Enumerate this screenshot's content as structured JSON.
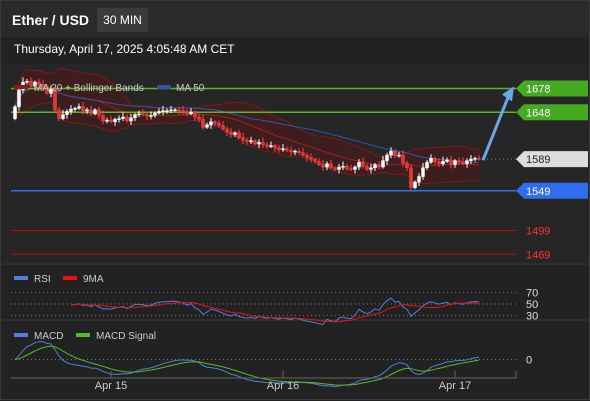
{
  "header": {
    "title": "Ether / USD",
    "timeframe": "30 MIN"
  },
  "datetime": "Thursday, April 17, 2025 4:05:48 AM CET",
  "colors": {
    "up": "#ffffff",
    "down": "#ff4444",
    "ma20": "#8b1a1a",
    "ma50": "#3355aa",
    "rsi": "#4f7fe0",
    "rsi_ma": "#ee1111",
    "macd": "#4f7fe0",
    "macd_signal": "#55bb22",
    "resistance": "#5cb82a",
    "support": "#2f6fef",
    "target_low": "#aa1111",
    "arrow": "#6aa6ee"
  },
  "chart_data": [
    {
      "type": "candlestick",
      "series_legend": [
        {
          "name": "MA 20 + Bollinger Bands",
          "color": "#8b1a1a"
        },
        {
          "name": "MA 50",
          "color": "#3355aa"
        }
      ],
      "ylim": [
        1458,
        1700
      ],
      "x_ticks": [
        "Apr 15",
        "Apr 16",
        "Apr 17"
      ],
      "x_tick_index": [
        24,
        67,
        110
      ],
      "start_price": 1640,
      "closes": [
        1655,
        1676,
        1686,
        1687,
        1681,
        1686,
        1683,
        1680,
        1672,
        1677,
        1651,
        1640,
        1645,
        1649,
        1652,
        1653,
        1655,
        1650,
        1651,
        1646,
        1651,
        1644,
        1637,
        1638,
        1636,
        1639,
        1640,
        1642,
        1637,
        1641,
        1645,
        1646,
        1645,
        1643,
        1644,
        1647,
        1649,
        1650,
        1650,
        1651,
        1651,
        1650,
        1649,
        1646,
        1648,
        1642,
        1639,
        1629,
        1632,
        1636,
        1634,
        1631,
        1627,
        1623,
        1620,
        1622,
        1616,
        1613,
        1611,
        1612,
        1608,
        1610,
        1607,
        1605,
        1606,
        1603,
        1601,
        1602,
        1600,
        1598,
        1599,
        1597,
        1594,
        1591,
        1589,
        1586,
        1582,
        1579,
        1583,
        1578,
        1576,
        1579,
        1580,
        1577,
        1576,
        1579,
        1585,
        1580,
        1576,
        1578,
        1582,
        1579,
        1587,
        1594,
        1599,
        1593,
        1594,
        1584,
        1578,
        1553,
        1560,
        1567,
        1578,
        1585,
        1590,
        1586,
        1583,
        1586,
        1588,
        1582,
        1587,
        1585,
        1583,
        1587,
        1589,
        1590,
        1589
      ],
      "levels": [
        {
          "label": "1678",
          "value": 1678,
          "kind": "resistance"
        },
        {
          "label": "1648",
          "value": 1648,
          "kind": "resistance"
        },
        {
          "label": "1589",
          "value": 1589,
          "kind": "current"
        },
        {
          "label": "1549",
          "value": 1549,
          "kind": "support"
        },
        {
          "label": "1499",
          "value": 1499,
          "kind": "target"
        },
        {
          "label": "1469",
          "value": 1469,
          "kind": "target"
        }
      ],
      "arrow": {
        "from": 1585,
        "to": 1678
      }
    },
    {
      "type": "line",
      "series_legend": [
        {
          "name": "RSI",
          "color": "#4f7fe0"
        },
        {
          "name": "9MA",
          "color": "#ee1111"
        }
      ],
      "ylim": [
        20,
        80
      ],
      "reference_lines": [
        {
          "label": "70",
          "value": 70
        },
        {
          "label": "50",
          "value": 50
        },
        {
          "label": "30",
          "value": 30
        }
      ]
    },
    {
      "type": "line",
      "series_legend": [
        {
          "name": "MACD",
          "color": "#4f7fe0"
        },
        {
          "name": "MACD Signal",
          "color": "#55bb22"
        }
      ],
      "ylim": [
        -7,
        7
      ],
      "reference_lines": [
        {
          "label": "0",
          "value": 0
        }
      ]
    }
  ]
}
